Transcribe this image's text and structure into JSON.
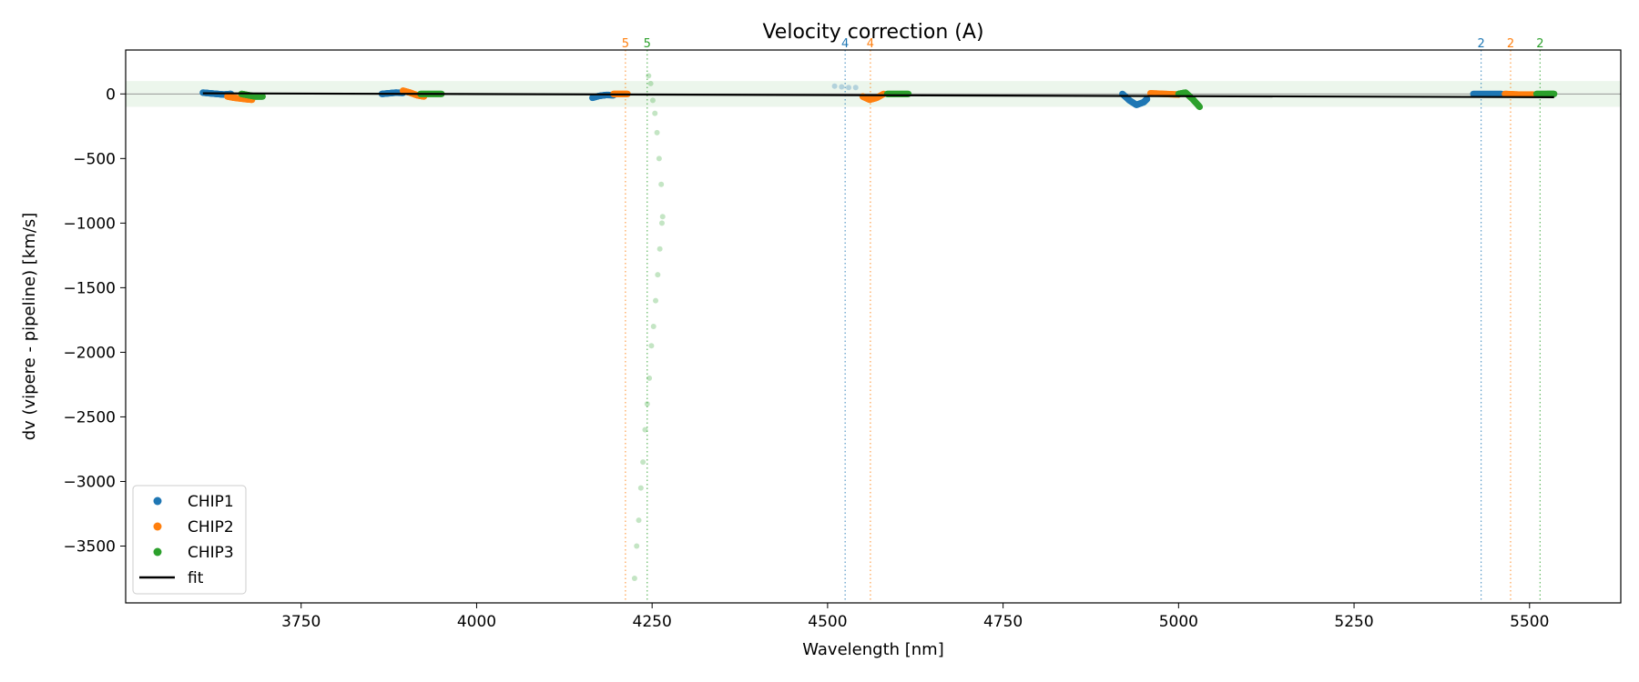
{
  "chart_data": {
    "type": "scatter",
    "title": "Velocity correction (A)",
    "xlabel": "Wavelength [nm]",
    "ylabel": "dv (vipere - pipeline) [km/s]",
    "xlim": [
      3500,
      5630
    ],
    "ylim": [
      -3940,
      340
    ],
    "xticks": [
      3750,
      4000,
      4250,
      4500,
      4750,
      5000,
      5250,
      5500
    ],
    "yticks": [
      0,
      -500,
      -1000,
      -1500,
      -2000,
      -2500,
      -3000,
      -3500
    ],
    "tolerance_band": [
      -100,
      100
    ],
    "colors": {
      "CHIP1": "#1f77b4",
      "CHIP2": "#ff7f0e",
      "CHIP3": "#2ca02c",
      "fit": "#000000",
      "band": "#2ca02c"
    },
    "legend": {
      "position": "lower-left",
      "entries": [
        "CHIP1",
        "CHIP2",
        "CHIP3",
        "fit"
      ]
    },
    "fit": {
      "x": [
        3610,
        5535
      ],
      "y": [
        5,
        -25
      ]
    },
    "series": [
      {
        "name": "CHIP1",
        "segments": [
          {
            "x": [
              3610,
              3620,
              3630,
              3640,
              3650
            ],
            "y": [
              10,
              5,
              0,
              -5,
              0
            ]
          },
          {
            "x": [
              3865,
              3875,
              3885,
              3895
            ],
            "y": [
              0,
              5,
              10,
              8
            ]
          },
          {
            "x": [
              4165,
              4175,
              4185,
              4195
            ],
            "y": [
              -30,
              -15,
              -8,
              -10
            ]
          },
          {
            "x": [
              4920,
              4930,
              4940,
              4950,
              4955
            ],
            "y": [
              0,
              -50,
              -85,
              -65,
              -40
            ]
          },
          {
            "x": [
              5420,
              5440,
              5460
            ],
            "y": [
              0,
              0,
              0
            ]
          }
        ]
      },
      {
        "name": "CHIP2",
        "segments": [
          {
            "x": [
              3645,
              3655,
              3670,
              3680
            ],
            "y": [
              -20,
              -30,
              -40,
              -45
            ]
          },
          {
            "x": [
              3895,
              3905,
              3915,
              3925
            ],
            "y": [
              25,
              10,
              -10,
              -20
            ]
          },
          {
            "x": [
              4195,
              4205,
              4215
            ],
            "y": [
              0,
              0,
              0
            ]
          },
          {
            "x": [
              4550,
              4560,
              4570,
              4580
            ],
            "y": [
              -20,
              -45,
              -30,
              0
            ]
          },
          {
            "x": [
              4960,
              4980,
              5000
            ],
            "y": [
              5,
              0,
              -5
            ]
          },
          {
            "x": [
              5465,
              5485,
              5505
            ],
            "y": [
              0,
              -5,
              -5
            ]
          }
        ]
      },
      {
        "name": "CHIP3",
        "segments": [
          {
            "x": [
              3665,
              3675,
              3685,
              3695
            ],
            "y": [
              0,
              -10,
              -20,
              -20
            ]
          },
          {
            "x": [
              3920,
              3935,
              3950
            ],
            "y": [
              0,
              0,
              0
            ]
          },
          {
            "x": [
              4585,
              4600,
              4615
            ],
            "y": [
              0,
              0,
              0
            ]
          },
          {
            "x": [
              5000,
              5010,
              5020,
              5030
            ],
            "y": [
              0,
              10,
              -40,
              -100
            ]
          },
          {
            "x": [
              5510,
              5525,
              5535
            ],
            "y": [
              0,
              0,
              0
            ]
          }
        ]
      },
      {
        "name": "CHIP1 faint",
        "faint": true,
        "segments": [
          {
            "x": [
              4510,
              4520,
              4530,
              4540
            ],
            "y": [
              60,
              55,
              50,
              50
            ]
          }
        ]
      },
      {
        "name": "CHIP3 faint",
        "faint": true,
        "segments": [
          {
            "x": [
              4225,
              4228,
              4231,
              4234,
              4237,
              4240,
              4243,
              4246,
              4249,
              4252,
              4255,
              4258,
              4261,
              4264
            ],
            "y": [
              -3750,
              -3500,
              -3300,
              -3050,
              -2850,
              -2600,
              -2400,
              -2200,
              -1950,
              -1800,
              -1600,
              -1400,
              -1200,
              -1000
            ]
          },
          {
            "x": [
              4245,
              4248,
              4251,
              4254,
              4257,
              4260,
              4263,
              4265
            ],
            "y": [
              140,
              80,
              -50,
              -150,
              -300,
              -500,
              -700,
              -950
            ]
          }
        ]
      }
    ],
    "order_markers": [
      {
        "x": 4212,
        "label": "5",
        "chip": "CHIP2"
      },
      {
        "x": 4243,
        "label": "5",
        "chip": "CHIP3"
      },
      {
        "x": 4525,
        "label": "4",
        "chip": "CHIP1"
      },
      {
        "x": 4561,
        "label": "4",
        "chip": "CHIP2"
      },
      {
        "x": 5431,
        "label": "2",
        "chip": "CHIP1"
      },
      {
        "x": 5473,
        "label": "2",
        "chip": "CHIP2"
      },
      {
        "x": 5515,
        "label": "2",
        "chip": "CHIP3"
      }
    ]
  }
}
